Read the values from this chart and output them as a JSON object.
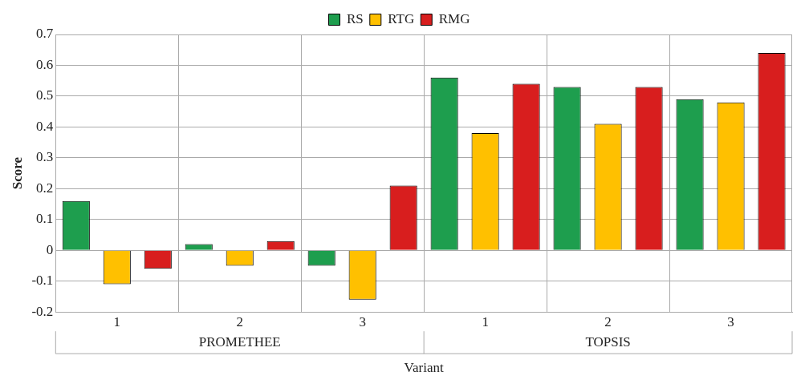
{
  "chart_data": {
    "type": "bar",
    "xlabel": "Variant",
    "ylabel": "Score",
    "categories": [
      "1",
      "2",
      "3",
      "1",
      "2",
      "3"
    ],
    "series": [
      {
        "name": "RS",
        "color": "#1e9e4e",
        "values": [
          0.16,
          0.02,
          -0.05,
          0.56,
          0.53,
          0.49
        ]
      },
      {
        "name": "RTG",
        "color": "#ffc000",
        "values": [
          -0.11,
          -0.05,
          -0.16,
          0.38,
          0.41,
          0.48
        ]
      },
      {
        "name": "RMG",
        "color": "#d81e1e",
        "values": [
          -0.06,
          0.03,
          0.21,
          0.54,
          0.53,
          0.64
        ]
      }
    ],
    "annotations": [
      "PROMETHEE",
      "TOPSIS"
    ],
    "ylim": [
      -0.2,
      0.7
    ],
    "yticks": [
      -0.2,
      -0.1,
      0,
      0.1,
      0.2,
      0.3,
      0.4,
      0.5,
      0.6,
      0.7
    ],
    "grid": true,
    "legend": "top"
  }
}
